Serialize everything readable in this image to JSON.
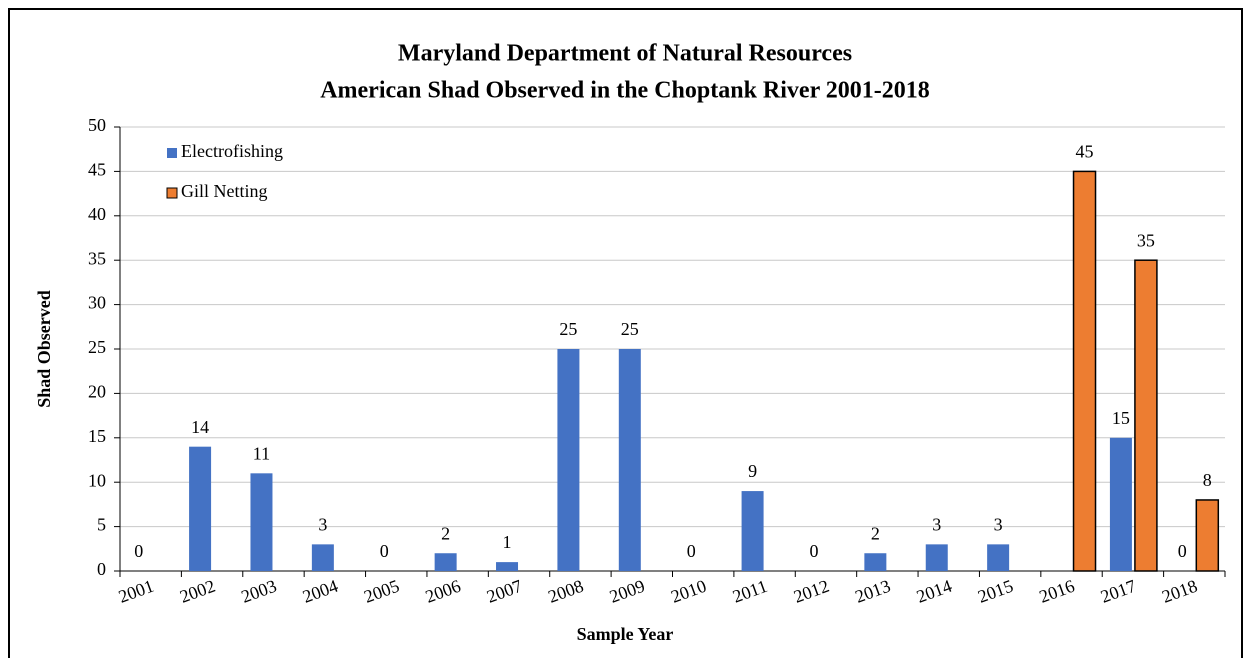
{
  "chart_data": {
    "type": "bar",
    "title": [
      "Maryland Department of Natural Resources",
      "American Shad Observed in the Choptank River 2001-2018"
    ],
    "x_label": "Sample Year",
    "y_label": "Shad Observed",
    "categories": [
      "2001",
      "2002",
      "2003",
      "2004",
      "2005",
      "2006",
      "2007",
      "2008",
      "2009",
      "2010",
      "2011",
      "2012",
      "2013",
      "2014",
      "2015",
      "2016",
      "2017",
      "2018"
    ],
    "series": [
      {
        "name": "Electrofishing",
        "color": "#4472c4",
        "values": [
          0,
          14,
          11,
          3,
          0,
          2,
          1,
          25,
          25,
          0,
          9,
          0,
          2,
          3,
          3,
          null,
          15,
          0
        ]
      },
      {
        "name": "Gill Netting",
        "color": "#ed7d31",
        "values": [
          null,
          null,
          null,
          null,
          null,
          null,
          null,
          null,
          null,
          null,
          null,
          null,
          null,
          null,
          null,
          45,
          35,
          8
        ]
      }
    ],
    "ylim": [
      0,
      50
    ],
    "yticks": [
      0,
      5,
      10,
      15,
      20,
      25,
      30,
      35,
      40,
      45,
      50
    ],
    "grid": true,
    "legend": "top-left"
  }
}
